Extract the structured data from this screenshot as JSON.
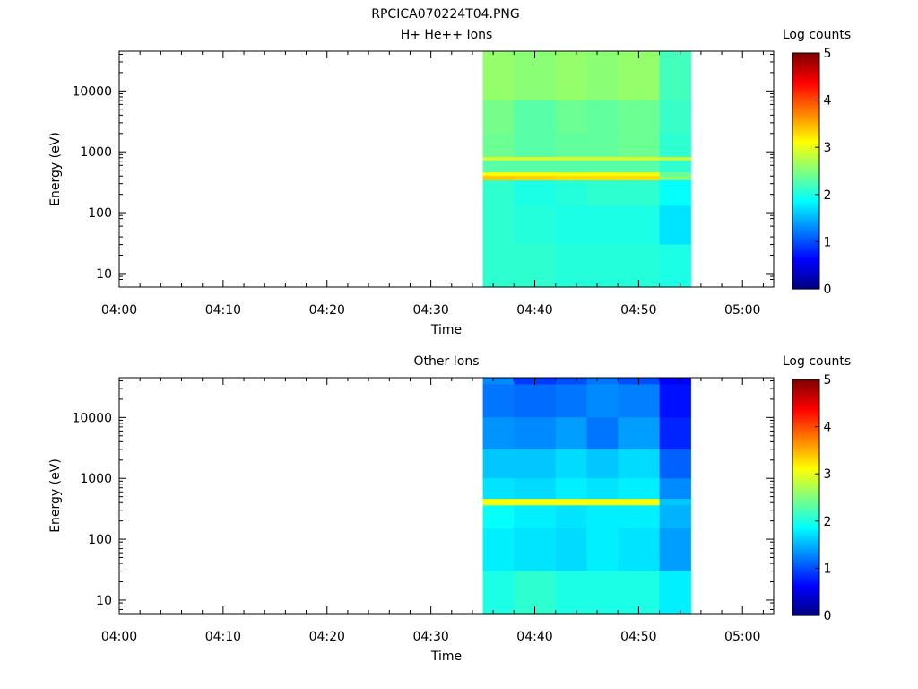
{
  "figure_title": "RPCICA070224T04.PNG",
  "chart_data": [
    {
      "type": "heatmap",
      "title": "H+ He++ Ions",
      "xlabel": "Time",
      "ylabel": "Energy (eV)",
      "yscale": "log",
      "xlim": [
        "04:00",
        "05:03"
      ],
      "ylim": [
        6,
        45000
      ],
      "x_ticks": [
        "04:00",
        "04:10",
        "04:20",
        "04:30",
        "04:40",
        "04:50",
        "05:00"
      ],
      "y_ticks": [
        10,
        100,
        1000,
        10000
      ],
      "colorbar": {
        "label": "Log counts",
        "range": [
          0,
          5
        ],
        "ticks": [
          0,
          1,
          2,
          3,
          4,
          5
        ],
        "colormap": "jet"
      },
      "time_bins": [
        "04:35",
        "04:38",
        "04:42",
        "04:45",
        "04:48",
        "04:52",
        "04:55"
      ],
      "bands": [
        {
          "emin": 7000,
          "emax": 45000,
          "values": [
            2.6,
            2.55,
            2.6,
            2.55,
            2.6,
            2.2
          ]
        },
        {
          "emin": 2000,
          "emax": 7000,
          "values": [
            2.45,
            2.3,
            2.4,
            2.35,
            2.4,
            2.15
          ]
        },
        {
          "emin": 820,
          "emax": 2000,
          "values": [
            2.4,
            2.3,
            2.35,
            2.35,
            2.4,
            2.1
          ]
        },
        {
          "emin": 720,
          "emax": 820,
          "values": [
            2.95,
            2.95,
            2.95,
            2.95,
            2.95,
            2.9
          ]
        },
        {
          "emin": 460,
          "emax": 720,
          "values": [
            2.3,
            2.3,
            2.3,
            2.3,
            2.3,
            2.1
          ]
        },
        {
          "emin": 400,
          "emax": 460,
          "values": [
            3.1,
            3.1,
            3.05,
            3.1,
            3.05,
            2.4
          ]
        },
        {
          "emin": 340,
          "emax": 400,
          "values": [
            3.4,
            3.35,
            3.3,
            3.3,
            3.3,
            2.5
          ]
        },
        {
          "emin": 130,
          "emax": 340,
          "values": [
            2.1,
            2.0,
            2.05,
            2.1,
            2.1,
            1.9
          ]
        },
        {
          "emin": 30,
          "emax": 130,
          "values": [
            2.1,
            2.05,
            2.0,
            2.0,
            2.0,
            1.75
          ]
        },
        {
          "emin": 6,
          "emax": 30,
          "values": [
            2.1,
            2.1,
            2.05,
            2.05,
            2.05,
            2.0
          ]
        }
      ]
    },
    {
      "type": "heatmap",
      "title": "Other Ions",
      "xlabel": "Time",
      "ylabel": "Energy (eV)",
      "yscale": "log",
      "xlim": [
        "04:00",
        "05:03"
      ],
      "ylim": [
        6,
        45000
      ],
      "x_ticks": [
        "04:00",
        "04:10",
        "04:20",
        "04:30",
        "04:40",
        "04:50",
        "05:00"
      ],
      "y_ticks": [
        10,
        100,
        1000,
        10000
      ],
      "colorbar": {
        "label": "Log counts",
        "range": [
          0,
          5
        ],
        "ticks": [
          0,
          1,
          2,
          3,
          4,
          5
        ],
        "colormap": "jet"
      },
      "time_bins": [
        "04:35",
        "04:38",
        "04:42",
        "04:45",
        "04:48",
        "04:52",
        "04:55"
      ],
      "bands": [
        {
          "emin": 35000,
          "emax": 45000,
          "values": [
            1.3,
            0.9,
            1.0,
            1.2,
            1.0,
            0.6
          ]
        },
        {
          "emin": 10000,
          "emax": 35000,
          "values": [
            1.2,
            1.15,
            1.2,
            1.3,
            1.25,
            0.7
          ]
        },
        {
          "emin": 3000,
          "emax": 10000,
          "values": [
            1.35,
            1.3,
            1.4,
            1.2,
            1.4,
            0.8
          ]
        },
        {
          "emin": 1000,
          "emax": 3000,
          "values": [
            1.6,
            1.6,
            1.7,
            1.6,
            1.7,
            1.1
          ]
        },
        {
          "emin": 460,
          "emax": 1000,
          "values": [
            1.75,
            1.7,
            1.8,
            1.75,
            1.8,
            1.3
          ]
        },
        {
          "emin": 360,
          "emax": 460,
          "values": [
            3.1,
            3.1,
            3.1,
            3.1,
            3.1,
            1.6
          ]
        },
        {
          "emin": 150,
          "emax": 360,
          "values": [
            1.9,
            1.8,
            1.75,
            1.8,
            1.8,
            1.5
          ]
        },
        {
          "emin": 30,
          "emax": 150,
          "values": [
            1.8,
            1.75,
            1.7,
            1.8,
            1.75,
            1.4
          ]
        },
        {
          "emin": 6,
          "emax": 30,
          "values": [
            2.0,
            2.1,
            2.0,
            2.0,
            2.0,
            1.8
          ]
        }
      ]
    }
  ]
}
